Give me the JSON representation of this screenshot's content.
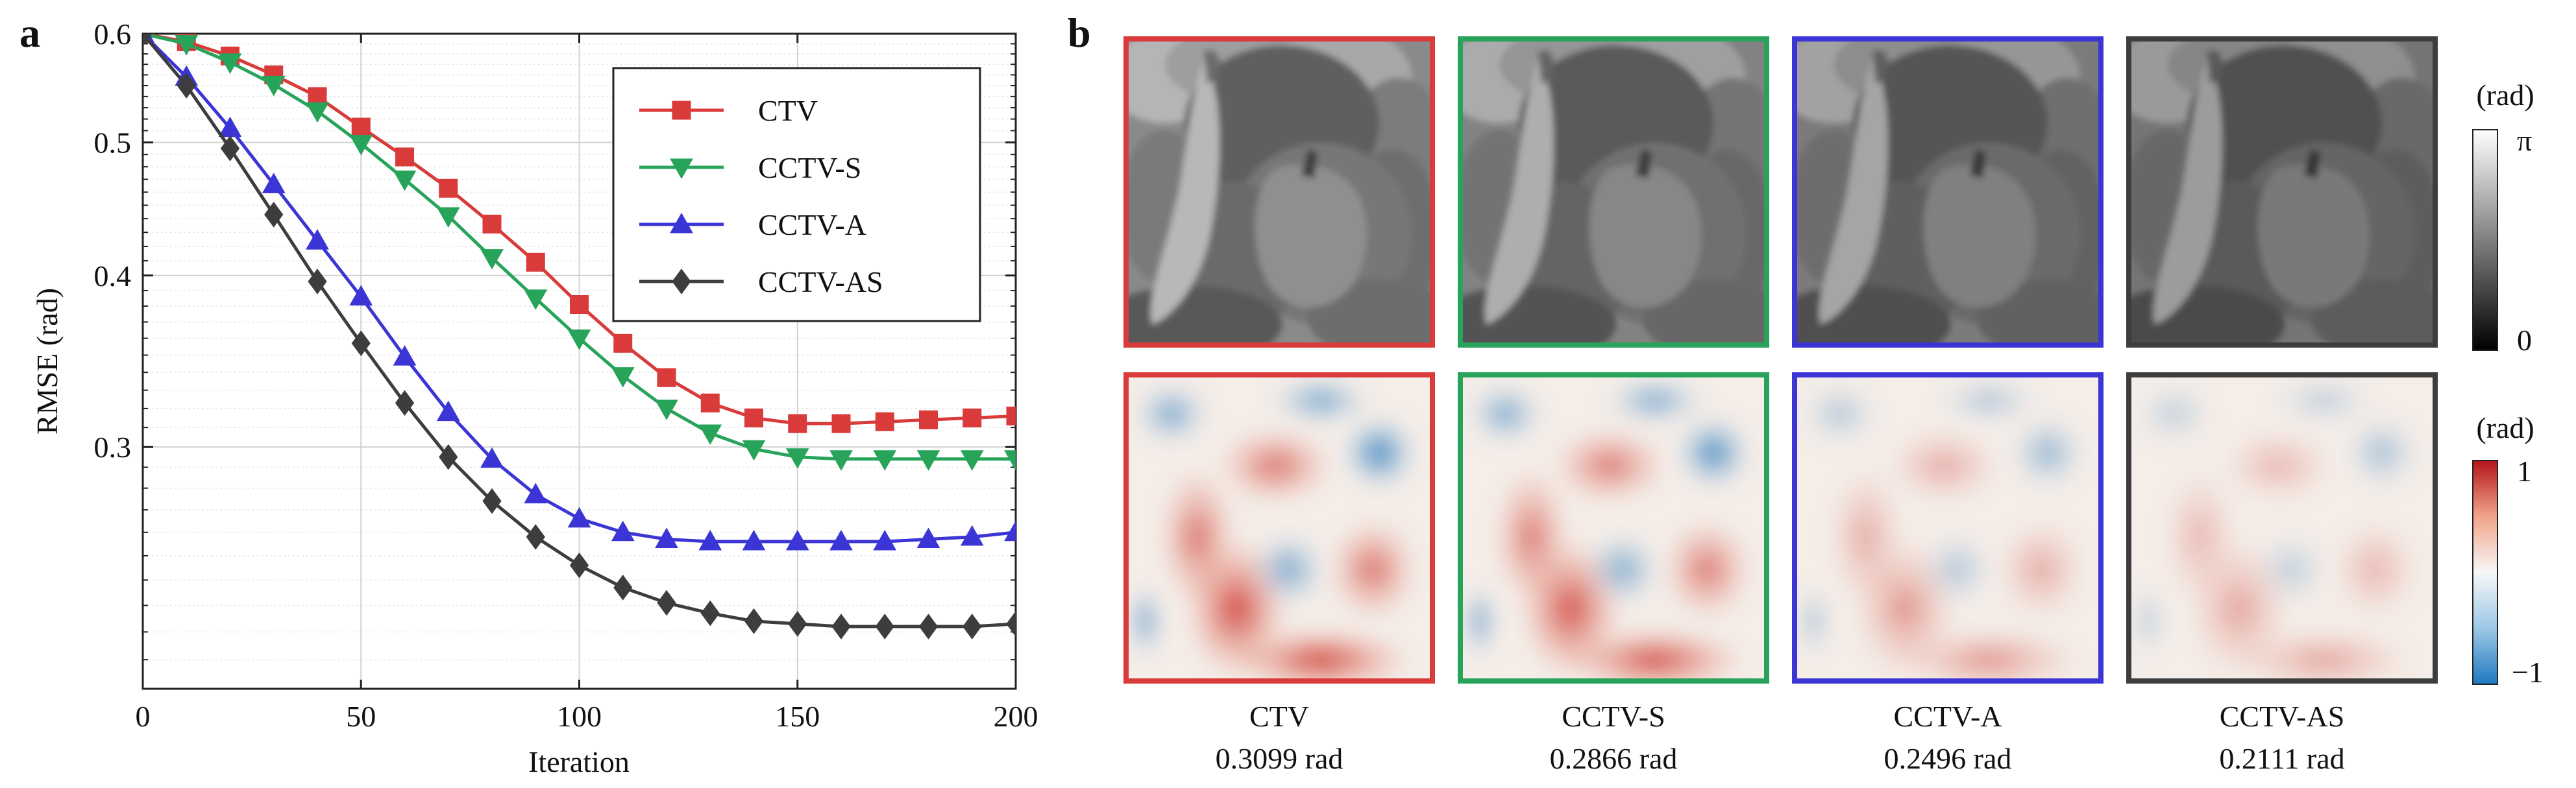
{
  "panel_labels": {
    "a": "a",
    "b": "b"
  },
  "colors": {
    "CTV": "#d93a3a",
    "CCTV-S": "#27a35a",
    "CCTV-A": "#3a35d4",
    "CCTV-AS": "#3d3d3d"
  },
  "chart_data": {
    "type": "line",
    "xlabel": "Iteration",
    "ylabel": "RMSE (rad)",
    "x_ticks": [
      "0",
      "50",
      "100",
      "150",
      "200"
    ],
    "y_ticks": [
      "0.3",
      "0.4",
      "0.5",
      "0.6"
    ],
    "xlim": [
      0,
      200
    ],
    "ylim": [
      0.2,
      0.6
    ],
    "y_scale": "log",
    "grid": true,
    "legend_position": "top-right",
    "x": [
      0,
      10,
      20,
      30,
      40,
      50,
      60,
      70,
      80,
      90,
      100,
      110,
      120,
      130,
      140,
      150,
      160,
      170,
      180,
      190,
      200
    ],
    "series": [
      {
        "name": "CTV",
        "marker": "square",
        "values": [
          0.6,
          0.592,
          0.578,
          0.56,
          0.54,
          0.513,
          0.488,
          0.463,
          0.436,
          0.409,
          0.381,
          0.357,
          0.337,
          0.323,
          0.315,
          0.312,
          0.312,
          0.313,
          0.314,
          0.315,
          0.316
        ]
      },
      {
        "name": "CCTV-S",
        "marker": "triangle-down",
        "values": [
          0.6,
          0.59,
          0.572,
          0.551,
          0.527,
          0.499,
          0.47,
          0.442,
          0.412,
          0.385,
          0.36,
          0.338,
          0.32,
          0.307,
          0.299,
          0.295,
          0.294,
          0.294,
          0.294,
          0.294,
          0.294
        ]
      },
      {
        "name": "CCTV-A",
        "marker": "triangle-up",
        "values": [
          0.6,
          0.558,
          0.512,
          0.466,
          0.424,
          0.386,
          0.349,
          0.318,
          0.294,
          0.277,
          0.266,
          0.26,
          0.257,
          0.256,
          0.256,
          0.256,
          0.256,
          0.256,
          0.257,
          0.258,
          0.26
        ]
      },
      {
        "name": "CCTV-AS",
        "marker": "diamond",
        "values": [
          0.6,
          0.55,
          0.495,
          0.443,
          0.396,
          0.357,
          0.323,
          0.295,
          0.274,
          0.258,
          0.246,
          0.237,
          0.231,
          0.227,
          0.224,
          0.223,
          0.222,
          0.222,
          0.222,
          0.222,
          0.223
        ]
      }
    ]
  },
  "panel_b": {
    "columns": [
      {
        "method": "CTV",
        "rmse": "0.3099 rad"
      },
      {
        "method": "CCTV-S",
        "rmse": "0.2866 rad"
      },
      {
        "method": "CCTV-A",
        "rmse": "0.2496 rad"
      },
      {
        "method": "CCTV-AS",
        "rmse": "0.2111 rad"
      }
    ],
    "phase_colorbar": {
      "unit": "(rad)",
      "top": "π",
      "bottom": "0"
    },
    "error_colorbar": {
      "unit": "(rad)",
      "top": "1",
      "bottom": "−1"
    }
  }
}
